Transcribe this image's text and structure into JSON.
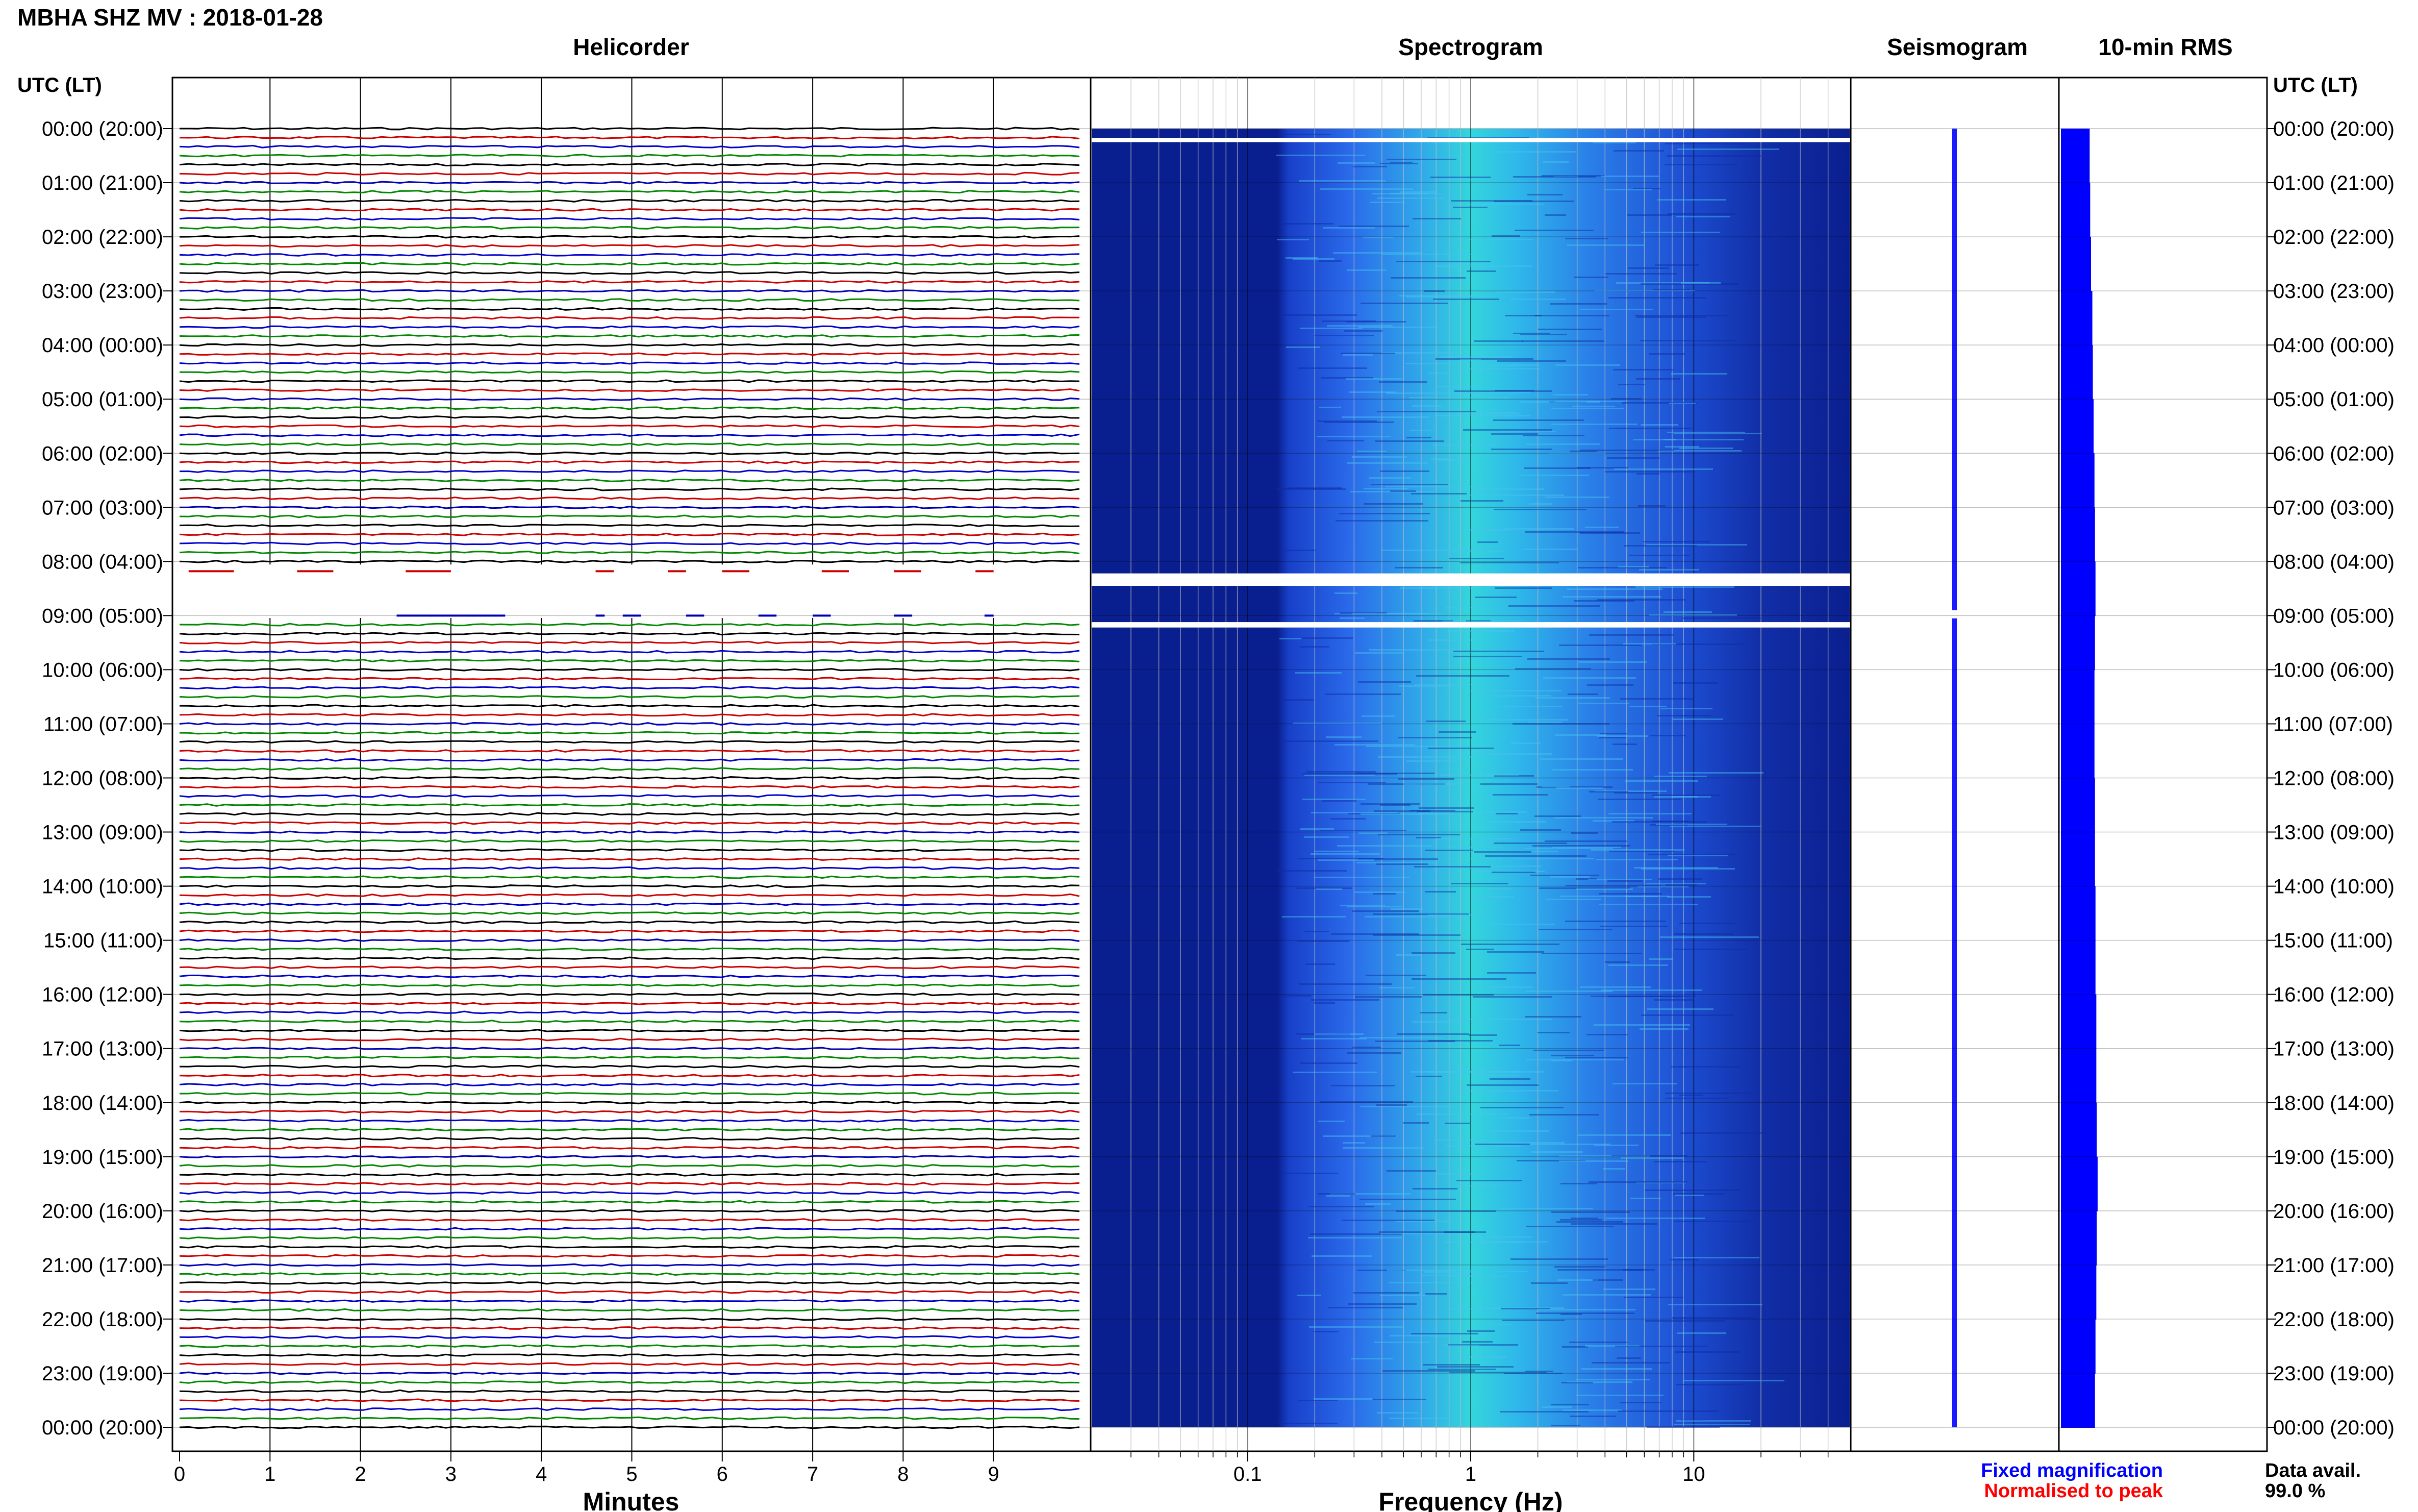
{
  "title": "MBHA SHZ MV : 2018-01-28",
  "panels": {
    "helicorder": "Helicorder",
    "spectrogram": "Spectrogram",
    "seismogram": "Seismogram",
    "rms": "10-min RMS"
  },
  "utc_label_left": "UTC (LT)",
  "utc_label_right": "UTC (LT)",
  "time_labels": [
    "00:00 (20:00)",
    "01:00 (21:00)",
    "02:00 (22:00)",
    "03:00 (23:00)",
    "04:00 (00:00)",
    "05:00 (01:00)",
    "06:00 (02:00)",
    "07:00 (03:00)",
    "08:00 (04:00)",
    "09:00 (05:00)",
    "10:00 (06:00)",
    "11:00 (07:00)",
    "12:00 (08:00)",
    "13:00 (09:00)",
    "14:00 (10:00)",
    "15:00 (11:00)",
    "16:00 (12:00)",
    "17:00 (13:00)",
    "18:00 (14:00)",
    "19:00 (15:00)",
    "20:00 (16:00)",
    "21:00 (17:00)",
    "22:00 (18:00)",
    "23:00 (19:00)",
    "00:00 (20:00)"
  ],
  "x_axis_helicorder": {
    "label": "Minutes",
    "ticks": [
      "0",
      "1",
      "2",
      "3",
      "4",
      "5",
      "6",
      "7",
      "8",
      "9"
    ]
  },
  "x_axis_spectrogram": {
    "label": "Frequency (Hz)",
    "ticks": [
      "0.1",
      "1",
      "10"
    ],
    "scale": "log"
  },
  "legend": {
    "fixed": "Fixed magnification",
    "normalised": "Normalised to peak",
    "fixed_color": "#0000ff",
    "normalised_color": "#ff0000"
  },
  "data_avail": {
    "label": "Data avail.",
    "value": "99.0 %"
  },
  "colors": {
    "trace_cycle": [
      "#000000",
      "#cc0000",
      "#0000cc",
      "#008800"
    ],
    "spectro_background": "#0a1f8f",
    "spectro_peak": "#33dddd",
    "seismogram": "#1a1aff",
    "rms": "#0000ff"
  },
  "chart_data": [
    {
      "type": "line",
      "name": "helicorder",
      "xlabel": "Minutes",
      "xlim": [
        0,
        10
      ],
      "ylim": [
        "00:00",
        "24:00"
      ],
      "rows_per_hour": 6,
      "row_minutes": 10,
      "gaps_utc": [
        "00:07-00:08",
        "08:00-09:10"
      ]
    },
    {
      "type": "heatmap",
      "name": "spectrogram",
      "xlabel": "Frequency (Hz)",
      "xlim": [
        0.02,
        50
      ],
      "x_scale": "log",
      "energy_band_hz": [
        0.15,
        5
      ],
      "peak_hz": 1.0,
      "gaps_utc": [
        "00:07",
        "08:10-08:20",
        "09:05-09:10"
      ]
    },
    {
      "type": "bar",
      "name": "10-min RMS",
      "relative_values": [
        0.7,
        0.72,
        0.75,
        0.8,
        0.82,
        0.85,
        0.88,
        0.9,
        0.92,
        0.9,
        0.88,
        0.88,
        0.9,
        0.9,
        0.92,
        0.92,
        0.95,
        0.95,
        0.97,
        1.0,
        0.97,
        0.95,
        0.92,
        0.9
      ]
    }
  ]
}
